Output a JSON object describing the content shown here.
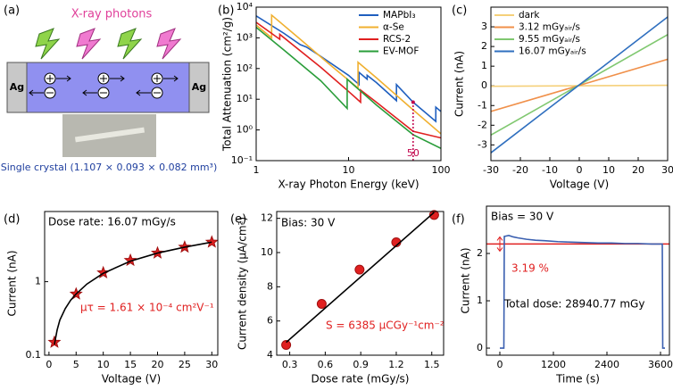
{
  "schematic": {
    "label": "(a)",
    "title": "X-ray photons",
    "electrode_left": "Ag",
    "electrode_right": "Ag",
    "caption": "Single crystal  (1.107 × 0.093 × 0.082 mm³)"
  },
  "chart_data": [
    {
      "type": "line",
      "panel": "(b)",
      "xlabel": "X-ray Photon Energy (keV)",
      "ylabel": "Total Attenuation (cm²/g)",
      "xscale": "log",
      "yscale": "log",
      "xlim": [
        1,
        100
      ],
      "ylim": [
        0.1,
        10000
      ],
      "xticks": [
        1,
        10,
        100
      ],
      "yticks": [
        {
          "value": 0.1,
          "label": "10⁻¹"
        },
        {
          "value": 1,
          "label": "10⁰"
        },
        {
          "value": 10,
          "label": "10¹"
        },
        {
          "value": 100,
          "label": "10²"
        },
        {
          "value": 1000,
          "label": "10³"
        },
        {
          "value": 10000,
          "label": "10⁴"
        }
      ],
      "legend": "upper right",
      "highlight_x": 50,
      "highlight_color": "#c0004a",
      "series": [
        {
          "name": "MAPbI₃",
          "color": "#1f5fbf",
          "x": [
            1,
            2,
            3,
            3.5,
            5,
            10,
            13,
            13,
            15.9,
            15.9,
            20,
            33,
            33,
            50,
            88,
            88,
            100
          ],
          "values": [
            5200,
            1400,
            600,
            500,
            250,
            60,
            30,
            75,
            45,
            60,
            35,
            9,
            30,
            8,
            1.9,
            5.5,
            4
          ]
        },
        {
          "name": "α-Se",
          "color": "#f0b030",
          "x": [
            1,
            1.47,
            1.47,
            3,
            6,
            12.66,
            12.66,
            20,
            50,
            100
          ],
          "values": [
            2600,
            1000,
            5500,
            900,
            150,
            23,
            160,
            50,
            4.5,
            0.75
          ]
        },
        {
          "name": "RCS-2",
          "color": "#e02020",
          "x": [
            1,
            1.8,
            1.8,
            5,
            10,
            13.5,
            13.5,
            20,
            50,
            100
          ],
          "values": [
            3200,
            900,
            1300,
            110,
            18,
            8,
            20,
            8,
            0.9,
            0.55
          ]
        },
        {
          "name": "EV-MOF",
          "color": "#2a9d3a",
          "x": [
            1,
            2,
            5,
            9.66,
            9.66,
            20,
            50,
            100
          ],
          "values": [
            2200,
            400,
            40,
            5,
            45,
            6.5,
            0.7,
            0.25
          ]
        }
      ]
    },
    {
      "type": "line",
      "panel": "(c)",
      "xlabel": "Voltage (V)",
      "ylabel": "Current (nA)",
      "xlim": [
        -30,
        30
      ],
      "ylim": [
        -3.8,
        4
      ],
      "xticks": [
        -30,
        -20,
        -10,
        0,
        10,
        20,
        30
      ],
      "yticks": [
        -3,
        -2,
        -1,
        0,
        1,
        2,
        3
      ],
      "legend": "upper left",
      "series": [
        {
          "name": "dark",
          "color": "#f5d07a",
          "x": [
            -30,
            30
          ],
          "values": [
            -0.02,
            0.03
          ]
        },
        {
          "name": "3.12 mGyₐᵢᵣ/s",
          "color": "#f0904a",
          "x": [
            -30,
            30
          ],
          "values": [
            -1.3,
            1.35
          ]
        },
        {
          "name": "9.55 mGyₐᵢᵣ/s",
          "color": "#80c870",
          "x": [
            -30,
            30
          ],
          "values": [
            -2.5,
            2.6
          ]
        },
        {
          "name": "16.07 mGyₐᵢᵣ/s",
          "color": "#2f6fbf",
          "x": [
            -30,
            30
          ],
          "values": [
            -3.4,
            3.5
          ]
        }
      ]
    },
    {
      "type": "scatter",
      "panel": "(d)",
      "xlabel": "Voltage (V)",
      "ylabel": "Current (nA)",
      "yscale": "log",
      "xlim": [
        -0.8,
        31.1
      ],
      "ylim": [
        0.1,
        9
      ],
      "xticks": [
        0,
        5,
        10,
        15,
        20,
        25,
        30
      ],
      "yticks": [
        0.1,
        1
      ],
      "annotations": [
        {
          "text": "Dose rate: 16.07 mGy/s",
          "color": "#000000"
        },
        {
          "text": "μτ = 1.61 × 10⁻⁴ cm²V⁻¹",
          "color": "#e02020"
        }
      ],
      "series": [
        {
          "color": "#e02020",
          "marker": "star",
          "x": [
            1,
            5,
            10,
            15,
            20,
            25,
            30
          ],
          "values": [
            0.15,
            0.68,
            1.32,
            1.95,
            2.45,
            2.95,
            3.45
          ]
        },
        {
          "color": "#000000",
          "mode": "line",
          "x": [
            1,
            1.5,
            2,
            3,
            4,
            5,
            7,
            10,
            15,
            20,
            25,
            30
          ],
          "values": [
            0.14,
            0.22,
            0.3,
            0.43,
            0.56,
            0.68,
            0.93,
            1.3,
            1.9,
            2.45,
            2.95,
            3.45
          ]
        }
      ]
    },
    {
      "type": "scatter",
      "panel": "(e)",
      "xlabel": "Dose rate (mGy/s)",
      "ylabel": "Current density (μA/cm²)",
      "xlim": [
        0.19,
        1.6
      ],
      "ylim": [
        4,
        12.4
      ],
      "xticks": [
        0.3,
        0.6,
        0.9,
        1.2,
        1.5
      ],
      "yticks": [
        4,
        6,
        8,
        10,
        12
      ],
      "annotations": [
        {
          "text": "Bias: 30 V",
          "color": "#000000"
        },
        {
          "text": "S = 6385 μCGy⁻¹cm⁻²",
          "color": "#e02020"
        }
      ],
      "series": [
        {
          "color": "#e02020",
          "marker": "circle",
          "x": [
            0.27,
            0.57,
            0.89,
            1.2,
            1.52
          ],
          "values": [
            4.6,
            7.0,
            9.0,
            10.6,
            12.2
          ]
        },
        {
          "color": "#000000",
          "mode": "line",
          "x": [
            0.27,
            1.52
          ],
          "values": [
            4.75,
            12.35
          ]
        }
      ]
    },
    {
      "type": "line",
      "panel": "(f)",
      "xlabel": "Time (s)",
      "ylabel": "Current (nA)",
      "xlim": [
        -300,
        3800
      ],
      "ylim": [
        -0.15,
        3
      ],
      "xticks": [
        0,
        1200,
        2400,
        3600
      ],
      "yticks": [
        0,
        1,
        2
      ],
      "reference_y": 2.2,
      "reference_color": "#e02020",
      "annotations": [
        {
          "text": "Bias = 30 V",
          "color": "#000000"
        },
        {
          "text": "3.19 %",
          "color": "#e02020"
        },
        {
          "text": "Total dose: 28940.77 mGy",
          "color": "#000000"
        }
      ],
      "series": [
        {
          "color": "#3a5fb0",
          "x": [
            0,
            90,
            100,
            150,
            200,
            300,
            400,
            600,
            800,
            1000,
            1300,
            1600,
            1900,
            2200,
            2500,
            2800,
            3100,
            3400,
            3640,
            3650,
            3700
          ],
          "values": [
            0,
            0,
            2.36,
            2.37,
            2.38,
            2.35,
            2.33,
            2.3,
            2.28,
            2.27,
            2.25,
            2.24,
            2.23,
            2.22,
            2.22,
            2.21,
            2.21,
            2.2,
            2.2,
            0,
            0
          ]
        }
      ]
    }
  ]
}
